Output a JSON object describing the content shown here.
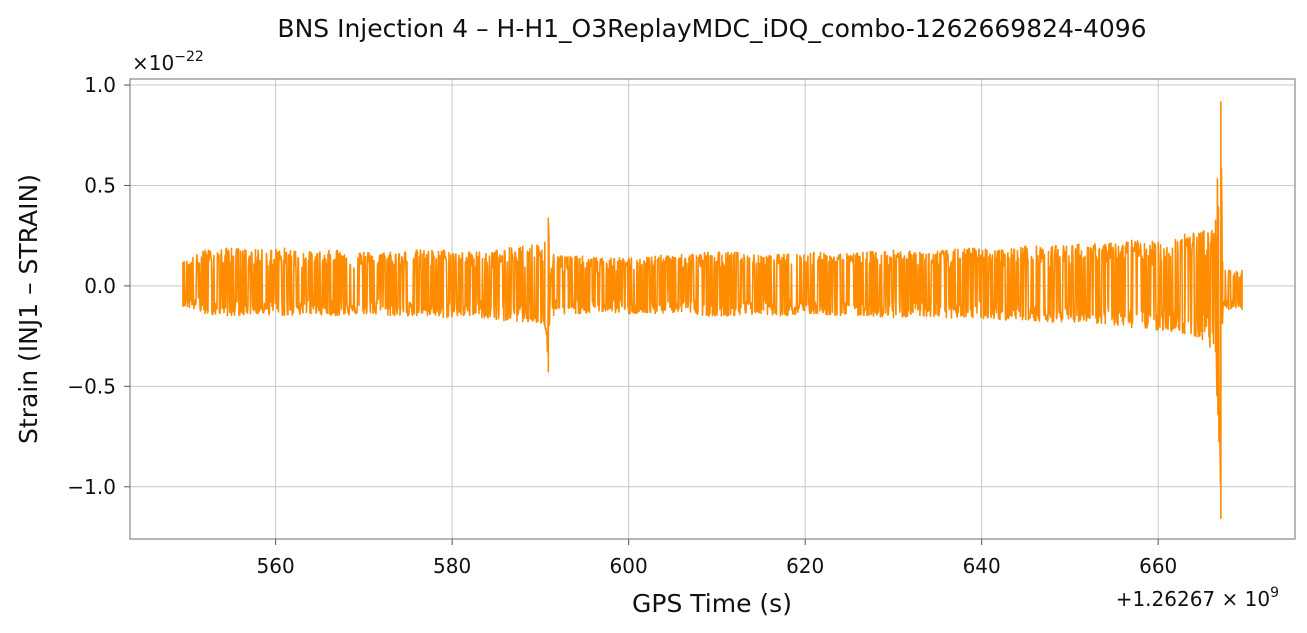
{
  "chart_data": {
    "type": "line",
    "title": "BNS Injection 4 – H-H1_O3ReplayMDC_iDQ_combo-1262669824-4096",
    "xlabel": "GPS Time (s)",
    "ylabel": "Strain (INJ1 – STRAIN)",
    "x_offset_label": "+1.26267 × 10",
    "x_offset_exp": "9",
    "y_scale_label": "×10",
    "y_scale_exp": "−22",
    "x_ticks": [
      {
        "value": 560,
        "label": "560"
      },
      {
        "value": 580,
        "label": "580"
      },
      {
        "value": 600,
        "label": "600"
      },
      {
        "value": 620,
        "label": "620"
      },
      {
        "value": 640,
        "label": "640"
      },
      {
        "value": 660,
        "label": "660"
      }
    ],
    "y_ticks": [
      {
        "value": 1.0,
        "label": "1.0"
      },
      {
        "value": 0.5,
        "label": "0.5"
      },
      {
        "value": 0.0,
        "label": "0.0"
      },
      {
        "value": -0.5,
        "label": "−0.5"
      },
      {
        "value": -1.0,
        "label": "−1.0"
      }
    ],
    "xlim": [
      543.5,
      675.5
    ],
    "ylim": [
      -1.26,
      1.03
    ],
    "grid": true,
    "series": [
      {
        "color": "#ff8c00",
        "x": [
          549.5,
          552,
          555,
          558,
          561,
          564,
          567,
          570,
          573,
          576,
          579,
          582,
          585,
          588,
          590.5,
          590.9,
          591.1,
          591.5,
          594,
          597,
          600,
          603,
          606,
          609,
          612,
          615,
          618,
          621,
          624,
          627,
          630,
          633,
          636,
          639,
          642,
          645,
          648,
          651,
          654,
          657,
          660,
          663,
          665,
          666.5,
          667.1,
          667.3,
          667.6,
          668,
          669.5
        ],
        "y_max": [
          0.12,
          0.18,
          0.19,
          0.18,
          0.19,
          0.17,
          0.18,
          0.17,
          0.17,
          0.18,
          0.18,
          0.17,
          0.18,
          0.2,
          0.22,
          0.34,
          0.06,
          0.16,
          0.15,
          0.14,
          0.14,
          0.15,
          0.16,
          0.17,
          0.17,
          0.15,
          0.16,
          0.17,
          0.16,
          0.17,
          0.18,
          0.17,
          0.18,
          0.19,
          0.18,
          0.2,
          0.2,
          0.21,
          0.21,
          0.23,
          0.22,
          0.26,
          0.27,
          0.33,
          0.92,
          0.12,
          0.08,
          0.08,
          0.08
        ],
        "y_min": [
          -0.1,
          -0.14,
          -0.15,
          -0.14,
          -0.15,
          -0.14,
          -0.15,
          -0.14,
          -0.15,
          -0.15,
          -0.16,
          -0.15,
          -0.17,
          -0.18,
          -0.2,
          -0.43,
          -0.08,
          -0.15,
          -0.14,
          -0.13,
          -0.14,
          -0.14,
          -0.13,
          -0.15,
          -0.15,
          -0.14,
          -0.15,
          -0.14,
          -0.15,
          -0.15,
          -0.16,
          -0.15,
          -0.16,
          -0.16,
          -0.17,
          -0.17,
          -0.18,
          -0.18,
          -0.19,
          -0.21,
          -0.22,
          -0.24,
          -0.27,
          -0.33,
          -1.16,
          -0.14,
          -0.1,
          -0.12,
          -0.12
        ]
      }
    ]
  }
}
